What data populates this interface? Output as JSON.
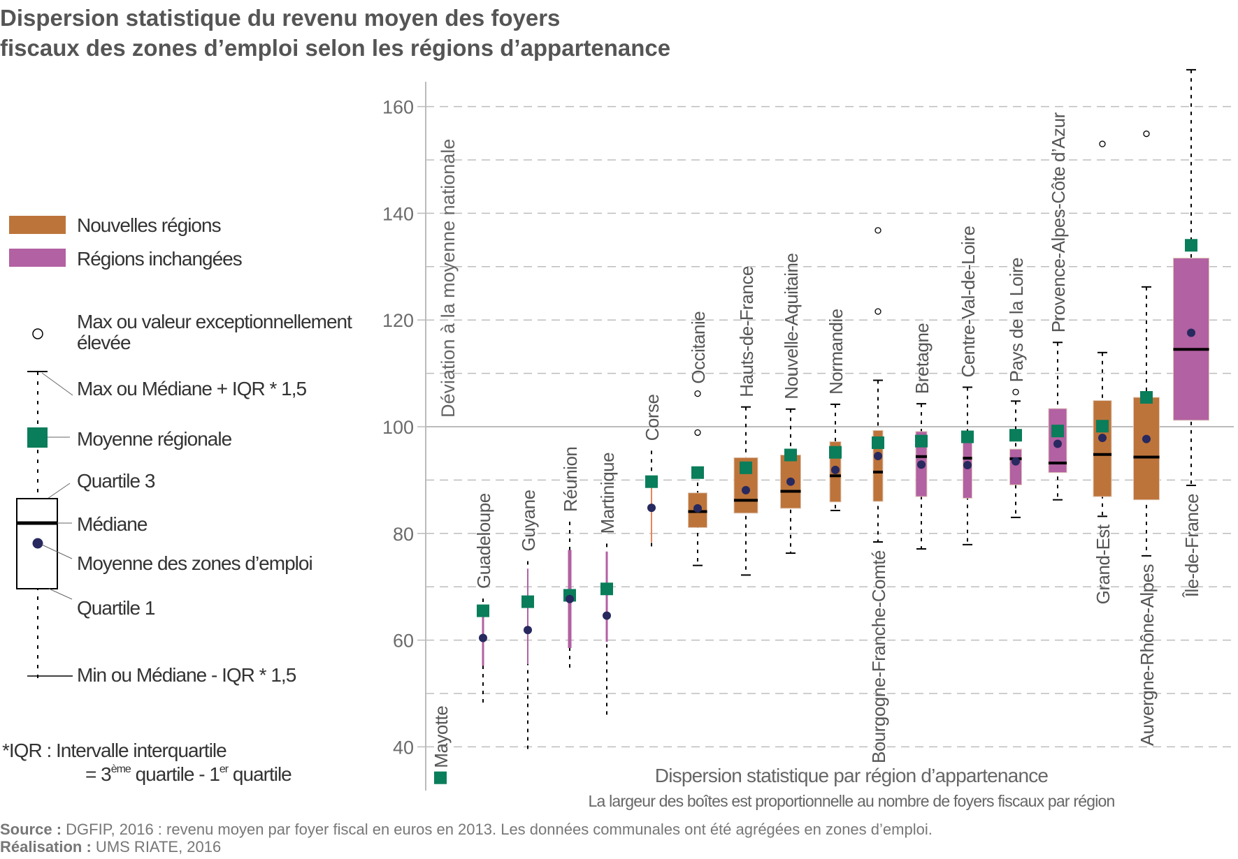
{
  "title": {
    "line1": "Dispersion statistique du revenu moyen des foyers",
    "line2": "fiscaux des zones d’emploi selon les régions d’appartenance"
  },
  "legend": {
    "nouvelles": "Nouvelles régions",
    "inchangees": "Régions inchangées",
    "outlier_line1": "Max ou valeur exceptionnellement",
    "outlier_line2": "élevée",
    "whisker_max": "Max ou Médiane + IQR * 1,5",
    "mean_regional": "Moyenne régionale",
    "q3": "Quartile 3",
    "median": "Médiane",
    "mean_zones": "Moyenne des zones d’emploi",
    "q1": "Quartile 1",
    "whisker_min": "Min ou Médiane - IQR * 1,5",
    "iqr_line1": "*IQR : Intervalle interquartile",
    "iqr_eq": "= 3",
    "iqr_sup1": "ème",
    "iqr_mid": " quartile - 1",
    "iqr_sup2": "er",
    "iqr_end": " quartile"
  },
  "footer": {
    "source_label": "Source :",
    "source_text": " DGFIP, 2016 : revenu moyen par foyer fiscal en euros en 2013. Les données communales ont été agrégées en zones d’emploi.",
    "realisation_label": "Réalisation :",
    "realisation_text": " UMS RIATE, 2016"
  },
  "colors": {
    "nouvelles": "#BD743A",
    "inchangees": "#B261A2",
    "mean_regional": "#0A7D5A",
    "mean_zones": "#27295F"
  },
  "chart_data": {
    "type": "boxplot",
    "title": "Dispersion statistique du revenu moyen des foyers fiscaux des zones d’emploi selon les régions d’appartenance",
    "xlabel": "Dispersion statistique par région d’appartenance",
    "xsublabel": "La largeur des boîtes est proportionnelle au nombre de foyers fiscaux par région",
    "ylabel": "Déviation à la moyenne nationale",
    "ylim": [
      32,
      168
    ],
    "yticks": [
      40,
      60,
      80,
      100,
      120,
      140,
      160
    ],
    "grid": true,
    "reference_line": 100,
    "regions": [
      {
        "name": "Mayotte",
        "color": "#B261A2",
        "mean_regional": 34.2
      },
      {
        "name": "Guadeloupe",
        "color": "#B261A2",
        "whisker_low": 47.4,
        "q1": 55.2,
        "q3": 65.5,
        "whisker_high": 67.8,
        "mean_regional": 65.5,
        "mean_zones": 60.4
      },
      {
        "name": "Guyane",
        "color": "#B261A2",
        "whisker_low": 38.8,
        "q1": 55.5,
        "q3": 73.4,
        "whisker_high": 74.8,
        "mean_regional": 67.2,
        "mean_zones": 61.9
      },
      {
        "name": "Réunion",
        "color": "#B261A2",
        "whisker_low": 54.4,
        "q1": 58.5,
        "q3": 76.9,
        "whisker_high": 82.2,
        "mean_regional": 68.4,
        "mean_zones": 67.7
      },
      {
        "name": "Martinique",
        "color": "#B261A2",
        "whisker_low": 45.2,
        "q1": 59.7,
        "q3": 76.6,
        "whisker_high": 78.1,
        "mean_regional": 69.6,
        "mean_zones": 64.6
      },
      {
        "name": "Corse",
        "color": "#E8845A",
        "whisker_low": 77.2,
        "q1": 78.3,
        "q3": 89.7,
        "whisker_high": 95.5,
        "mean_regional": 89.7,
        "mean_zones": 84.8
      },
      {
        "name": "Occitanie",
        "color": "#BD743A",
        "whisker_low": 74.0,
        "q1": 81.1,
        "median": 84.1,
        "q3": 87.6,
        "whisker_high": 91.1,
        "mean_regional": 91.4,
        "mean_zones": 84.7,
        "outliers": [
          98.9,
          106.2
        ]
      },
      {
        "name": "Hauts-de-France",
        "color": "#BD743A",
        "whisker_low": 72.2,
        "q1": 83.8,
        "median": 86.2,
        "q3": 94.2,
        "whisker_high": 103.7,
        "mean_regional": 92.3,
        "mean_zones": 88.1
      },
      {
        "name": "Nouvelle-Aquitaine",
        "color": "#BD743A",
        "whisker_low": 76.3,
        "q1": 84.7,
        "median": 87.9,
        "q3": 94.7,
        "whisker_high": 103.3,
        "mean_regional": 94.7,
        "mean_zones": 89.7
      },
      {
        "name": "Normandie",
        "color": "#BD743A",
        "whisker_low": 84.3,
        "q1": 85.9,
        "median": 90.8,
        "q3": 97.2,
        "whisker_high": 104.2,
        "mean_regional": 95.2,
        "mean_zones": 91.9
      },
      {
        "name": "Bourgogne-Franche-Comté",
        "color": "#BD743A",
        "whisker_low": 78.4,
        "q1": 86.0,
        "median": 91.5,
        "q3": 99.3,
        "whisker_high": 108.7,
        "mean_regional": 97.0,
        "mean_zones": 94.5,
        "outliers": [
          121.6,
          136.8
        ]
      },
      {
        "name": "Bretagne",
        "color": "#B261A2",
        "whisker_low": 77.1,
        "q1": 86.9,
        "median": 94.4,
        "q3": 99.1,
        "whisker_high": 104.3,
        "mean_regional": 97.3,
        "mean_zones": 92.9
      },
      {
        "name": "Centre-Val-de-Loire",
        "color": "#B261A2",
        "whisker_low": 77.9,
        "q1": 86.6,
        "median": 94.1,
        "q3": 98.2,
        "whisker_high": 107.4,
        "mean_regional": 98.1,
        "mean_zones": 92.8
      },
      {
        "name": "Pays de la Loire",
        "color": "#B261A2",
        "whisker_low": 83.0,
        "q1": 89.1,
        "median": 94.0,
        "q3": 95.8,
        "whisker_high": 104.8,
        "mean_regional": 98.4,
        "mean_zones": 93.5,
        "outliers": [
          106.5
        ]
      },
      {
        "name": "Provence-Alpes-Côte d’Azur",
        "color": "#B261A2",
        "whisker_low": 86.3,
        "q1": 91.4,
        "median": 93.2,
        "q3": 103.4,
        "whisker_high": 115.8,
        "mean_regional": 99.2,
        "mean_zones": 96.8
      },
      {
        "name": "Grand-Est",
        "color": "#BD743A",
        "whisker_low": 83.2,
        "q1": 86.9,
        "median": 94.8,
        "q3": 104.9,
        "whisker_high": 113.9,
        "mean_regional": 100.1,
        "mean_zones": 97.9,
        "outliers": [
          153.0
        ]
      },
      {
        "name": "Auvergne-Rhône-Alpes",
        "color": "#BD743A",
        "whisker_low": 75.8,
        "q1": 86.3,
        "median": 94.3,
        "q3": 105.5,
        "whisker_high": 126.2,
        "mean_regional": 105.5,
        "mean_zones": 97.7,
        "outliers": [
          154.9
        ]
      },
      {
        "name": "Île-de-France",
        "color": "#B261A2",
        "whisker_low": 89.0,
        "q1": 101.2,
        "median": 114.5,
        "q3": 131.6,
        "whisker_high": 166.9,
        "mean_regional": 134.0,
        "mean_zones": 117.6
      }
    ]
  }
}
